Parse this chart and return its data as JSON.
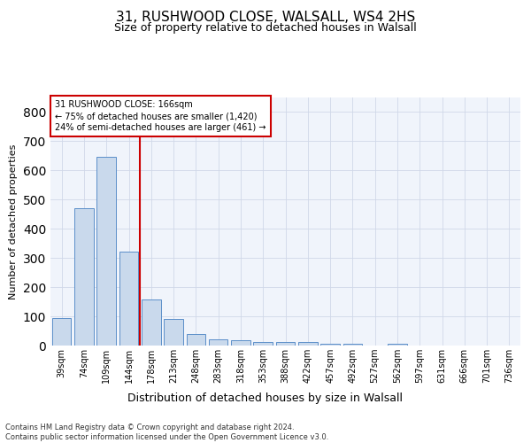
{
  "title": "31, RUSHWOOD CLOSE, WALSALL, WS4 2HS",
  "subtitle": "Size of property relative to detached houses in Walsall",
  "xlabel": "Distribution of detached houses by size in Walsall",
  "ylabel": "Number of detached properties",
  "categories": [
    "39sqm",
    "74sqm",
    "109sqm",
    "144sqm",
    "178sqm",
    "213sqm",
    "248sqm",
    "283sqm",
    "318sqm",
    "353sqm",
    "388sqm",
    "422sqm",
    "457sqm",
    "492sqm",
    "527sqm",
    "562sqm",
    "597sqm",
    "631sqm",
    "666sqm",
    "701sqm",
    "736sqm"
  ],
  "values": [
    93,
    470,
    648,
    323,
    157,
    91,
    38,
    22,
    17,
    13,
    13,
    12,
    7,
    5,
    0,
    7,
    0,
    0,
    0,
    0,
    0
  ],
  "bar_color": "#c9d9ec",
  "bar_edge_color": "#5b8fc9",
  "vline_color": "#cc0000",
  "annotation_text": "31 RUSHWOOD CLOSE: 166sqm\n← 75% of detached houses are smaller (1,420)\n24% of semi-detached houses are larger (461) →",
  "annotation_box_color": "#ffffff",
  "annotation_box_edge": "#cc0000",
  "ylim": [
    0,
    850
  ],
  "yticks": [
    0,
    100,
    200,
    300,
    400,
    500,
    600,
    700,
    800
  ],
  "grid_color": "#d0d8e8",
  "bg_color": "#f0f4fb",
  "footer": "Contains HM Land Registry data © Crown copyright and database right 2024.\nContains public sector information licensed under the Open Government Licence v3.0.",
  "title_fontsize": 11,
  "subtitle_fontsize": 9,
  "xlabel_fontsize": 9,
  "ylabel_fontsize": 8,
  "tick_fontsize": 7,
  "annotation_fontsize": 7,
  "footer_fontsize": 6
}
